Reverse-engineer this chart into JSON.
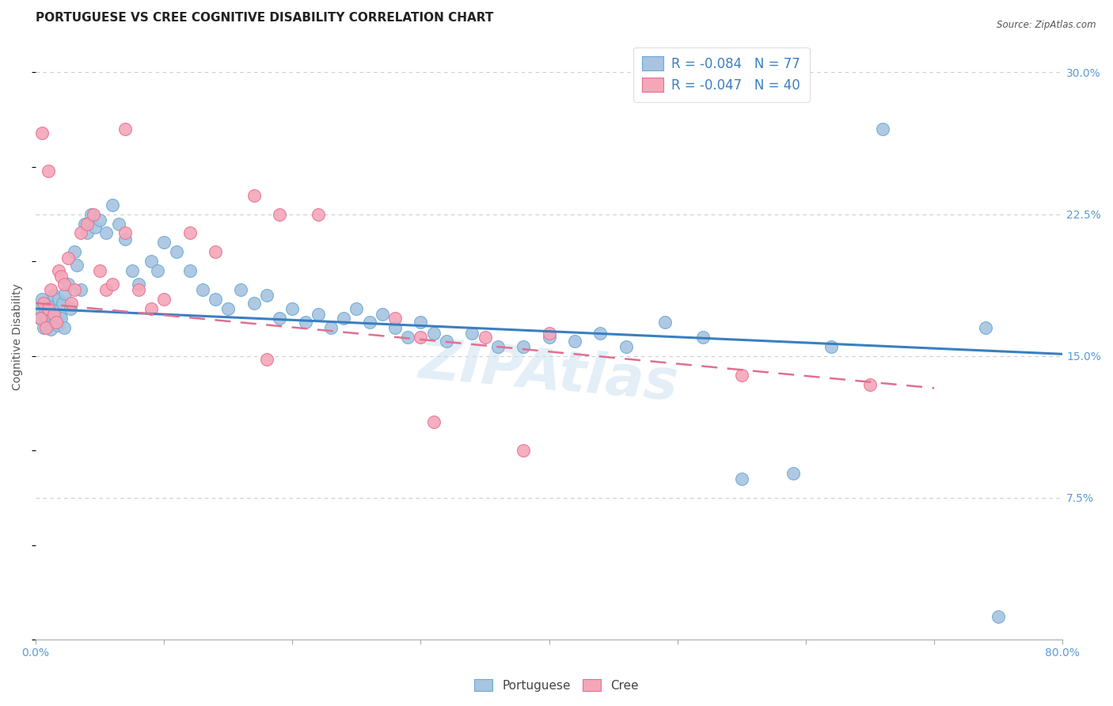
{
  "title": "PORTUGUESE VS CREE COGNITIVE DISABILITY CORRELATION CHART",
  "source": "Source: ZipAtlas.com",
  "ylabel": "Cognitive Disability",
  "xlim": [
    0.0,
    0.8
  ],
  "ylim": [
    0.0,
    0.32
  ],
  "xticks": [
    0.0,
    0.1,
    0.2,
    0.3,
    0.4,
    0.5,
    0.6,
    0.7,
    0.8
  ],
  "yticks": [
    0.0,
    0.075,
    0.15,
    0.225,
    0.3
  ],
  "yticklabels": [
    "",
    "7.5%",
    "15.0%",
    "22.5%",
    "30.0%"
  ],
  "grid_color": "#cccccc",
  "background_color": "#ffffff",
  "portuguese_color": "#a8c4e0",
  "cree_color": "#f4a7b9",
  "portuguese_edge_color": "#6aaad4",
  "cree_edge_color": "#e87090",
  "portuguese_line_color": "#3a7fc1",
  "cree_line_color": "#e07090",
  "legend_r_portuguese": "R = -0.084",
  "legend_n_portuguese": "N = 77",
  "legend_r_cree": "R = -0.047",
  "legend_n_cree": "N = 40",
  "portuguese_scatter_x": [
    0.003,
    0.004,
    0.005,
    0.006,
    0.007,
    0.008,
    0.009,
    0.01,
    0.011,
    0.012,
    0.013,
    0.014,
    0.015,
    0.016,
    0.017,
    0.018,
    0.019,
    0.02,
    0.021,
    0.022,
    0.023,
    0.025,
    0.027,
    0.03,
    0.032,
    0.035,
    0.038,
    0.04,
    0.043,
    0.046,
    0.05,
    0.055,
    0.06,
    0.065,
    0.07,
    0.075,
    0.08,
    0.09,
    0.095,
    0.1,
    0.11,
    0.12,
    0.13,
    0.14,
    0.15,
    0.16,
    0.17,
    0.18,
    0.19,
    0.2,
    0.21,
    0.22,
    0.23,
    0.24,
    0.25,
    0.26,
    0.27,
    0.28,
    0.29,
    0.3,
    0.31,
    0.32,
    0.34,
    0.36,
    0.38,
    0.4,
    0.42,
    0.44,
    0.46,
    0.49,
    0.52,
    0.55,
    0.59,
    0.62,
    0.66,
    0.74,
    0.75
  ],
  "portuguese_scatter_y": [
    0.17,
    0.175,
    0.18,
    0.165,
    0.172,
    0.168,
    0.176,
    0.173,
    0.178,
    0.164,
    0.17,
    0.182,
    0.168,
    0.174,
    0.166,
    0.18,
    0.172,
    0.17,
    0.178,
    0.165,
    0.183,
    0.188,
    0.175,
    0.205,
    0.198,
    0.185,
    0.22,
    0.215,
    0.225,
    0.218,
    0.222,
    0.215,
    0.23,
    0.22,
    0.212,
    0.195,
    0.188,
    0.2,
    0.195,
    0.21,
    0.205,
    0.195,
    0.185,
    0.18,
    0.175,
    0.185,
    0.178,
    0.182,
    0.17,
    0.175,
    0.168,
    0.172,
    0.165,
    0.17,
    0.175,
    0.168,
    0.172,
    0.165,
    0.16,
    0.168,
    0.162,
    0.158,
    0.162,
    0.155,
    0.155,
    0.16,
    0.158,
    0.162,
    0.155,
    0.168,
    0.16,
    0.085,
    0.088,
    0.155,
    0.27,
    0.165,
    0.012
  ],
  "cree_scatter_x": [
    0.004,
    0.006,
    0.008,
    0.01,
    0.012,
    0.014,
    0.016,
    0.018,
    0.02,
    0.022,
    0.025,
    0.028,
    0.03,
    0.035,
    0.04,
    0.045,
    0.05,
    0.055,
    0.06,
    0.07,
    0.08,
    0.09,
    0.1,
    0.12,
    0.14,
    0.17,
    0.19,
    0.22,
    0.28,
    0.3,
    0.31,
    0.35,
    0.38,
    0.4,
    0.55,
    0.65,
    0.005,
    0.01,
    0.07,
    0.18
  ],
  "cree_scatter_y": [
    0.17,
    0.178,
    0.165,
    0.175,
    0.185,
    0.172,
    0.168,
    0.195,
    0.192,
    0.188,
    0.202,
    0.178,
    0.185,
    0.215,
    0.22,
    0.225,
    0.195,
    0.185,
    0.188,
    0.215,
    0.185,
    0.175,
    0.18,
    0.215,
    0.205,
    0.235,
    0.225,
    0.225,
    0.17,
    0.16,
    0.115,
    0.16,
    0.1,
    0.162,
    0.14,
    0.135,
    0.268,
    0.248,
    0.27,
    0.148
  ],
  "watermark": "ZIPAtlas",
  "title_fontsize": 11,
  "axis_label_fontsize": 10,
  "tick_label_color": "#5b9bd5",
  "tick_fontsize": 10,
  "legend_text_color": "#3a7fc1"
}
